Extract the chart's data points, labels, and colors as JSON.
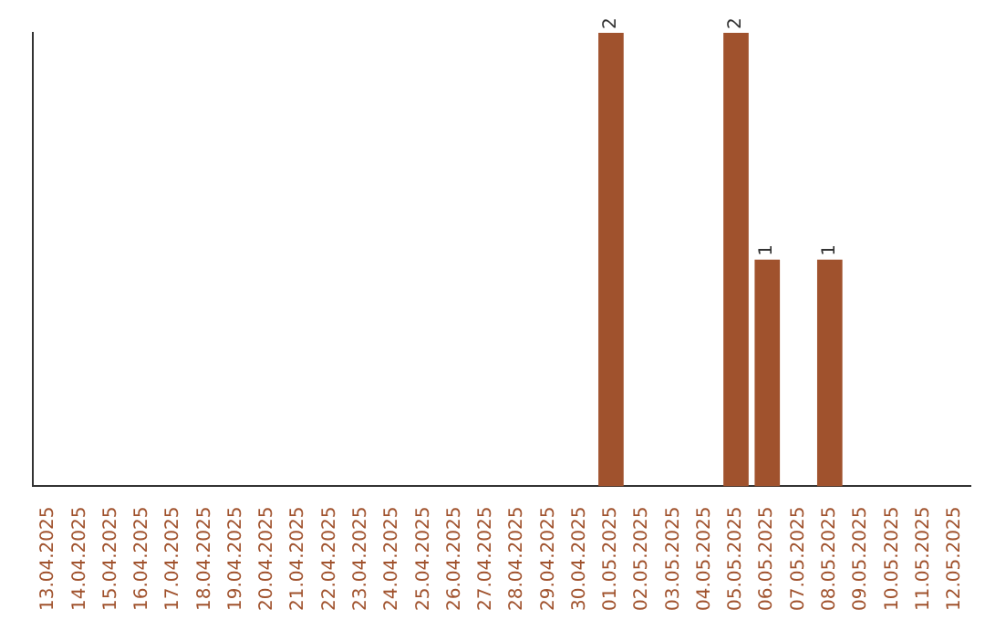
{
  "chart_data": {
    "type": "bar",
    "tick_labels": "x",
    "categories": [
      "13.04.2025",
      "14.04.2025",
      "15.04.2025",
      "16.04.2025",
      "17.04.2025",
      "18.04.2025",
      "19.04.2025",
      "20.04.2025",
      "21.04.2025",
      "22.04.2025",
      "23.04.2025",
      "24.04.2025",
      "25.04.2025",
      "26.04.2025",
      "27.04.2025",
      "28.04.2025",
      "29.04.2025",
      "30.04.2025",
      "01.05.2025",
      "02.05.2025",
      "03.05.2025",
      "04.05.2025",
      "05.05.2025",
      "06.05.2025",
      "07.05.2025",
      "08.05.2025",
      "09.05.2025",
      "10.05.2025",
      "11.05.2025",
      "12.05.2025"
    ],
    "values": [
      null,
      null,
      null,
      null,
      null,
      null,
      null,
      null,
      null,
      null,
      null,
      null,
      null,
      null,
      null,
      null,
      null,
      null,
      2,
      null,
      null,
      null,
      2,
      1,
      null,
      1,
      null,
      null,
      null,
      null
    ],
    "value_labels": [
      null,
      null,
      null,
      null,
      null,
      null,
      null,
      null,
      null,
      null,
      null,
      null,
      null,
      null,
      null,
      null,
      null,
      null,
      "2",
      null,
      null,
      null,
      "2",
      "1",
      null,
      "1",
      null,
      null,
      null,
      null
    ],
    "color": "#a0522d",
    "grid": false,
    "legend": false
  }
}
